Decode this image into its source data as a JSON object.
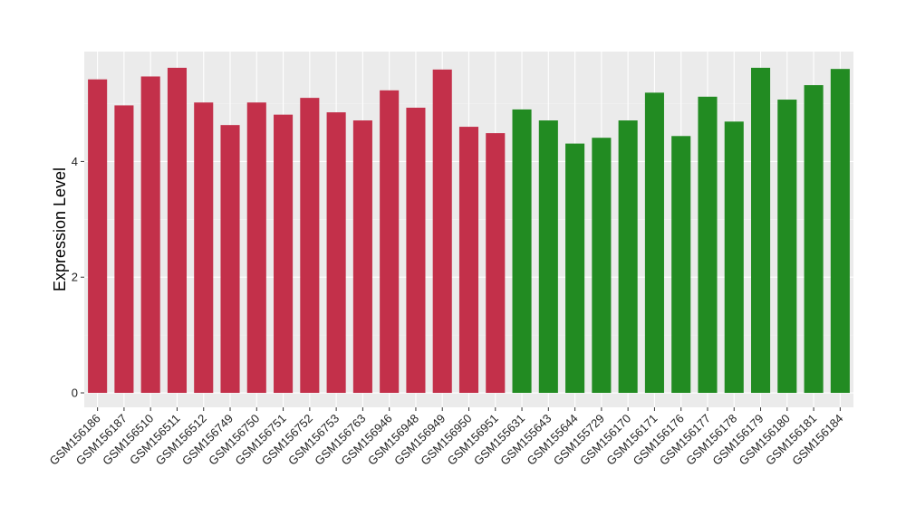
{
  "chart_data": {
    "type": "bar",
    "ylabel": "Expression Level",
    "xlabel": "",
    "ylim": [
      -0.25,
      5.9
    ],
    "yticks": [
      0,
      2,
      4
    ],
    "grid": true,
    "background": "#ebebeb",
    "categories": [
      "GSM156186",
      "GSM156187",
      "GSM156510",
      "GSM156511",
      "GSM156512",
      "GSM156749",
      "GSM156750",
      "GSM156751",
      "GSM156752",
      "GSM156753",
      "GSM156763",
      "GSM156946",
      "GSM156948",
      "GSM156949",
      "GSM156950",
      "GSM156951",
      "GSM155631",
      "GSM155643",
      "GSM155644",
      "GSM155729",
      "GSM156170",
      "GSM156171",
      "GSM156176",
      "GSM156177",
      "GSM156178",
      "GSM156179",
      "GSM156180",
      "GSM156181",
      "GSM156184"
    ],
    "values": [
      5.42,
      4.97,
      5.47,
      5.62,
      5.02,
      4.63,
      5.02,
      4.81,
      5.1,
      4.85,
      4.71,
      5.23,
      4.93,
      5.59,
      4.6,
      4.49,
      4.9,
      4.71,
      4.31,
      4.41,
      4.71,
      5.19,
      4.44,
      5.12,
      4.69,
      5.62,
      5.07,
      5.32,
      5.6
    ],
    "bar_colors": [
      "#c3304a",
      "#c3304a",
      "#c3304a",
      "#c3304a",
      "#c3304a",
      "#c3304a",
      "#c3304a",
      "#c3304a",
      "#c3304a",
      "#c3304a",
      "#c3304a",
      "#c3304a",
      "#c3304a",
      "#c3304a",
      "#c3304a",
      "#c3304a",
      "#228b22",
      "#228b22",
      "#228b22",
      "#228b22",
      "#228b22",
      "#228b22",
      "#228b22",
      "#228b22",
      "#228b22",
      "#228b22",
      "#228b22",
      "#228b22",
      "#228b22"
    ]
  }
}
